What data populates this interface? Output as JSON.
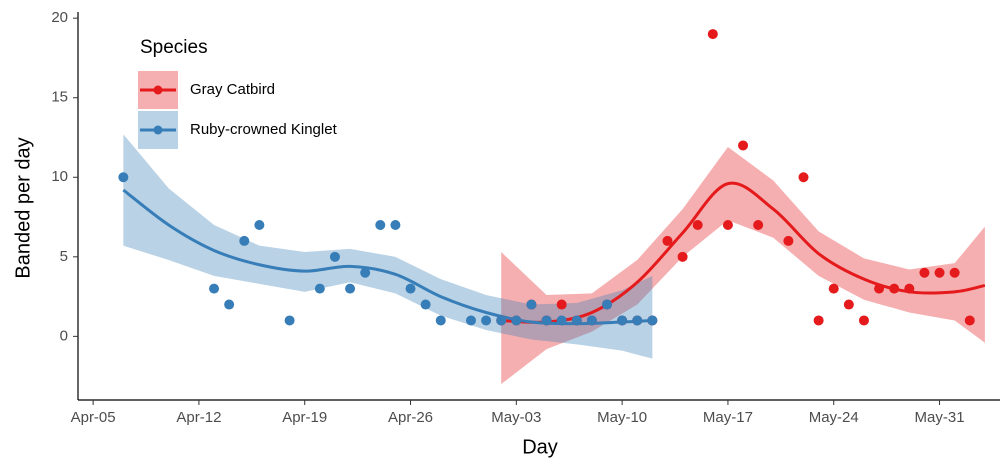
{
  "chart_data": {
    "type": "scatter",
    "x_label": "Day",
    "y_label": "Banded per day",
    "legend_title": "Species",
    "xlim": [
      "Apr-04",
      "Jun-04"
    ],
    "xticks": [
      "Apr-05",
      "Apr-12",
      "Apr-19",
      "Apr-26",
      "May-03",
      "May-10",
      "May-17",
      "May-24",
      "May-31"
    ],
    "ylim": [
      -4,
      20.2
    ],
    "yticks": [
      0,
      5,
      10,
      15,
      20
    ],
    "grid": false,
    "series": [
      {
        "name": "Gray Catbird",
        "color": "#e41a1c",
        "x": [
          "May-02",
          "May-03",
          "May-04",
          "May-05",
          "May-06",
          "May-07",
          "May-08",
          "May-09",
          "May-10",
          "May-11",
          "May-12",
          "May-13",
          "May-14",
          "May-15",
          "May-16",
          "May-17",
          "May-18",
          "May-19",
          "May-21",
          "May-22",
          "May-23",
          "May-24",
          "May-25",
          "May-26",
          "May-27",
          "May-28",
          "May-29",
          "May-30",
          "May-31",
          "Jun-01",
          "Jun-02"
        ],
        "values": [
          1,
          1,
          2,
          1,
          2,
          1,
          1,
          2,
          1,
          1,
          1,
          6,
          5,
          7,
          19,
          7,
          12,
          7,
          6,
          10,
          1,
          3,
          2,
          1,
          3,
          3,
          3,
          4,
          4,
          4,
          1
        ],
        "smooth": {
          "x": [
            "May-02",
            "May-05",
            "May-08",
            "May-11",
            "May-14",
            "May-17",
            "May-20",
            "May-23",
            "May-26",
            "May-29",
            "Jun-01",
            "Jun-03"
          ],
          "fit": [
            1.0,
            0.9,
            1.5,
            3.4,
            6.5,
            9.6,
            8.0,
            5.2,
            3.6,
            2.8,
            2.8,
            3.2
          ],
          "lower": [
            -3.0,
            -0.8,
            0.3,
            2.0,
            5.0,
            7.3,
            6.2,
            3.8,
            2.3,
            1.5,
            1.0,
            -0.4
          ],
          "upper": [
            5.3,
            2.6,
            2.7,
            4.8,
            8.0,
            11.9,
            9.8,
            6.6,
            4.9,
            4.2,
            4.6,
            6.9
          ]
        }
      },
      {
        "name": "Ruby-crowned Kinglet",
        "color": "#377eb8",
        "x": [
          "Apr-07",
          "Apr-13",
          "Apr-14",
          "Apr-15",
          "Apr-16",
          "Apr-18",
          "Apr-20",
          "Apr-21",
          "Apr-22",
          "Apr-23",
          "Apr-24",
          "Apr-25",
          "Apr-26",
          "Apr-27",
          "Apr-28",
          "Apr-30",
          "May-01",
          "May-02",
          "May-03",
          "May-04",
          "May-05",
          "May-06",
          "May-07",
          "May-08",
          "May-09",
          "May-10",
          "May-11",
          "May-12"
        ],
        "values": [
          10,
          3,
          2,
          6,
          7,
          1,
          3,
          5,
          3,
          4,
          7,
          7,
          3,
          2,
          1,
          1,
          1,
          1,
          1,
          2,
          1,
          1,
          1,
          1,
          2,
          1,
          1,
          1
        ],
        "smooth": {
          "x": [
            "Apr-07",
            "Apr-10",
            "Apr-13",
            "Apr-16",
            "Apr-19",
            "Apr-22",
            "Apr-25",
            "Apr-28",
            "May-01",
            "May-04",
            "May-07",
            "May-10",
            "May-12"
          ],
          "fit": [
            9.2,
            7.0,
            5.4,
            4.5,
            4.1,
            4.4,
            3.9,
            2.5,
            1.5,
            0.9,
            0.8,
            0.9,
            1.0
          ],
          "lower": [
            5.7,
            4.8,
            3.8,
            3.3,
            2.8,
            3.4,
            2.7,
            1.3,
            0.4,
            -0.2,
            -0.5,
            -0.9,
            -1.4
          ],
          "upper": [
            12.7,
            9.3,
            7.0,
            5.7,
            5.3,
            5.5,
            5.0,
            3.6,
            2.6,
            2.0,
            2.1,
            2.9,
            3.8
          ]
        }
      }
    ]
  }
}
